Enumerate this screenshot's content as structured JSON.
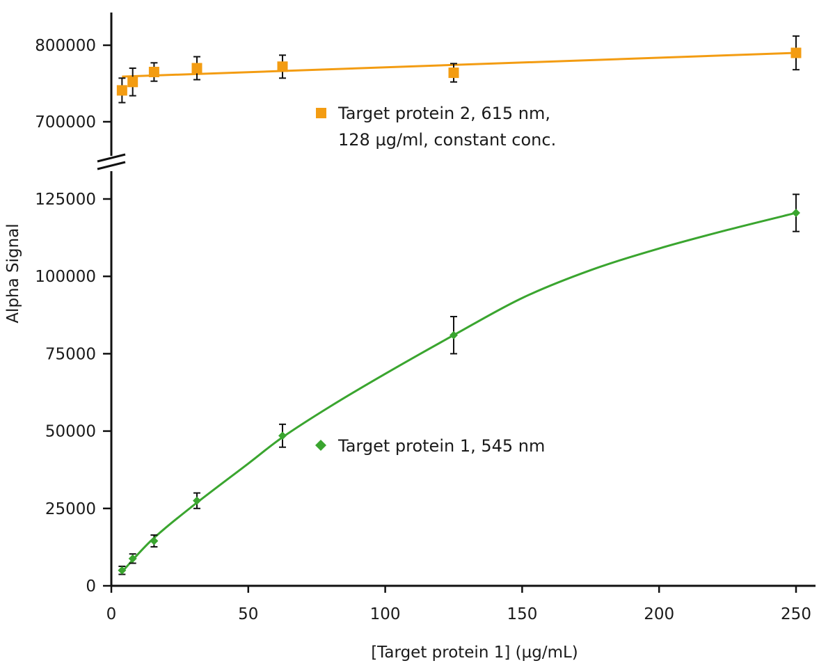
{
  "chart_data": {
    "type": "scatter",
    "xlabel": "[Target protein 1] (µg/mL)",
    "ylabel": "Alpha Signal",
    "xlim": [
      0,
      255
    ],
    "x_ticks": [
      0,
      50,
      100,
      150,
      200,
      250
    ],
    "y_axis_broken": true,
    "y_lower_range": [
      0,
      125000
    ],
    "y_lower_ticks": [
      0,
      25000,
      50000,
      75000,
      100000,
      125000
    ],
    "y_upper_range": [
      700000,
      800000
    ],
    "y_upper_ticks": [
      700000,
      800000
    ],
    "grid": false,
    "legend_placement": "inline, next to each series",
    "colors": {
      "series1": "#3aa52f",
      "series2": "#f39c12",
      "axis": "#111111"
    },
    "series": [
      {
        "name": "Target protein 1, 545 nm",
        "marker": "diamond",
        "color": "#3aa52f",
        "x": [
          3.9,
          7.8,
          15.6,
          31.25,
          62.5,
          125,
          250
        ],
        "y": [
          5000,
          8800,
          14500,
          27500,
          48500,
          81000,
          120500
        ],
        "error": [
          1300,
          1500,
          1900,
          2500,
          3700,
          6000,
          6000
        ],
        "fit_curve": [
          [
            3.9,
            4500
          ],
          [
            15,
            15000
          ],
          [
            30,
            26000
          ],
          [
            50,
            39500
          ],
          [
            62.5,
            48000
          ],
          [
            80,
            58000
          ],
          [
            100,
            68500
          ],
          [
            125,
            81000
          ],
          [
            150,
            93000
          ],
          [
            175,
            102000
          ],
          [
            200,
            109000
          ],
          [
            225,
            115000
          ],
          [
            250,
            120500
          ]
        ]
      },
      {
        "name": "Target protein 2, 615 nm,",
        "name_line2": "128 µg/ml, constant conc.",
        "marker": "square",
        "color": "#f39c12",
        "x": [
          3.9,
          7.8,
          15.6,
          31.25,
          62.5,
          125,
          250
        ],
        "y": [
          741000,
          752000,
          765000,
          770000,
          772000,
          764000,
          790000
        ],
        "error": [
          16000,
          18000,
          12000,
          15000,
          15000,
          12000,
          22000
        ],
        "fit_line": [
          [
            3.9,
            759000
          ],
          [
            250,
            790000
          ]
        ]
      }
    ]
  }
}
